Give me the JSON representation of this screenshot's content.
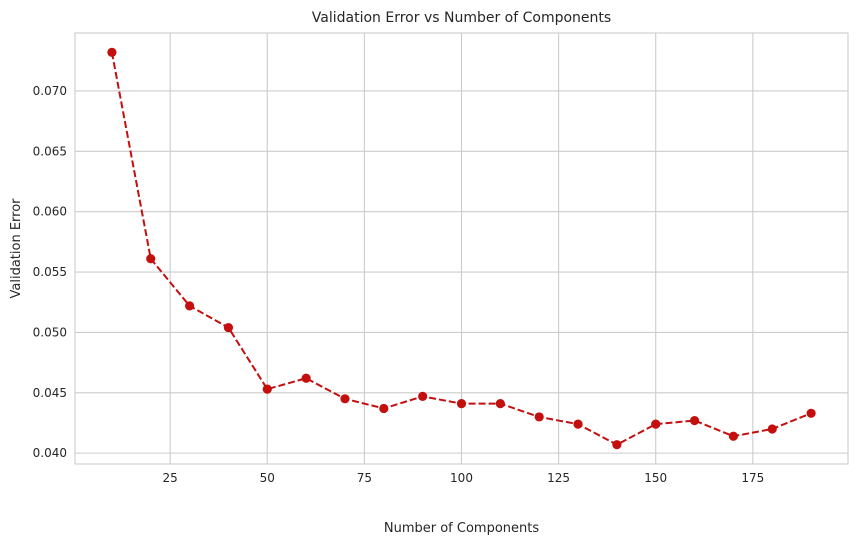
{
  "chart_data": {
    "type": "line",
    "title": "Validation Error vs Number of Components",
    "xlabel": "Number of Components",
    "ylabel": "Validation Error",
    "xlim": [
      0.5,
      199.5
    ],
    "ylim": [
      0.0391,
      0.0748
    ],
    "xticks": [
      25,
      50,
      75,
      100,
      125,
      150,
      175
    ],
    "yticks": [
      0.04,
      0.045,
      0.05,
      0.055,
      0.06,
      0.065,
      0.07
    ],
    "xtick_labels": [
      "25",
      "50",
      "75",
      "100",
      "125",
      "150",
      "175"
    ],
    "ytick_labels": [
      "0.040",
      "0.045",
      "0.050",
      "0.055",
      "0.060",
      "0.065",
      "0.070"
    ],
    "grid": true,
    "series": [
      {
        "line_style": "dashed",
        "marker": "circle",
        "color": "#c40f0f",
        "x": [
          10,
          20,
          30,
          40,
          50,
          60,
          70,
          80,
          90,
          100,
          110,
          120,
          130,
          140,
          150,
          160,
          170,
          180,
          190
        ],
        "y": [
          0.0732,
          0.0561,
          0.0522,
          0.0504,
          0.0453,
          0.0462,
          0.0445,
          0.0437,
          0.0447,
          0.0441,
          0.0441,
          0.043,
          0.0424,
          0.0407,
          0.0424,
          0.0427,
          0.0414,
          0.042,
          0.0433
        ]
      }
    ]
  }
}
